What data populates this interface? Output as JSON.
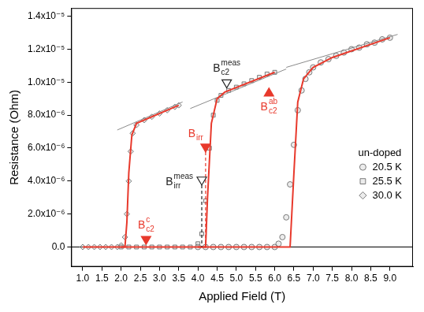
{
  "chart_data": {
    "type": "scatter",
    "x_label": "Applied Field (T)",
    "y_label": "Resistance (Ohm)",
    "xlim": [
      0.7,
      9.6
    ],
    "xticks": [
      {
        "value": 1,
        "label": "1.0"
      },
      1.5,
      {
        "value": 2,
        "label": "2.0"
      },
      2.5,
      {
        "value": 3,
        "label": "3.0"
      },
      3.5,
      {
        "value": 4,
        "label": "4.0"
      },
      4.5,
      {
        "value": 5,
        "label": "5.0"
      },
      5.5,
      {
        "value": 6,
        "label": "6.0"
      },
      6.5,
      {
        "value": 7,
        "label": "7.0"
      },
      7.5,
      {
        "value": 8,
        "label": "8.0"
      },
      8.5,
      {
        "value": 9,
        "label": "9.0"
      }
    ],
    "ylim": [
      -1.2e-06,
      1.45e-05
    ],
    "yticks": [
      {
        "value": 0,
        "label": "0.0"
      },
      {
        "value": 2e-06,
        "label": "2.0x10⁻⁶"
      },
      {
        "value": 4e-06,
        "label": "4.0x10⁻⁶"
      },
      {
        "value": 6e-06,
        "label": "6.0x10⁻⁶"
      },
      {
        "value": 8e-06,
        "label": "8.0x10⁻⁶"
      },
      {
        "value": 1e-05,
        "label": "1.0x10⁻⁵"
      },
      {
        "value": 1.2e-05,
        "label": "1.2x10⁻⁵"
      },
      {
        "value": 1.4e-05,
        "label": "1.4x10⁻⁵"
      }
    ],
    "grid": false,
    "legend": "right",
    "legend_title": "un-doped",
    "series": [
      {
        "name": "20.5 K",
        "type": "scatter",
        "color": "#7a7a7a",
        "marker": "circle",
        "x": [
          4.0,
          4.2,
          4.4,
          4.6,
          4.8,
          5.0,
          5.2,
          5.4,
          5.6,
          5.8,
          6.0,
          6.1,
          6.2,
          6.3,
          6.4,
          6.5,
          6.6,
          6.7,
          6.8,
          6.9,
          7.0,
          7.2,
          7.4,
          7.6,
          7.8,
          8.0,
          8.2,
          8.4,
          8.6,
          8.8,
          9.0
        ],
        "values": [
          0,
          0,
          0,
          0,
          0,
          0,
          0,
          0,
          0,
          0,
          0,
          2e-07,
          6e-07,
          1.8e-06,
          3.8e-06,
          6.2e-06,
          8.3e-06,
          9.5e-06,
          1.02e-05,
          1.06e-05,
          1.09e-05,
          1.12e-05,
          1.14e-05,
          1.16e-05,
          1.18e-05,
          1.2e-05,
          1.21e-05,
          1.23e-05,
          1.24e-05,
          1.26e-05,
          1.27e-05
        ]
      },
      {
        "name": "25.5 K",
        "type": "scatter",
        "color": "#7a7a7a",
        "marker": "square",
        "x": [
          2.0,
          2.2,
          2.4,
          2.6,
          2.8,
          3.0,
          3.2,
          3.4,
          3.6,
          3.8,
          4.0,
          4.1,
          4.2,
          4.3,
          4.4,
          4.5,
          4.6,
          4.8,
          5.0,
          5.2,
          5.4,
          5.6,
          5.8,
          6.0
        ],
        "values": [
          0,
          0,
          0,
          0,
          0,
          0,
          0,
          0,
          0,
          0,
          2e-07,
          8e-07,
          2.8e-06,
          6e-06,
          8e-06,
          8.9e-06,
          9.2e-06,
          9.5e-06,
          9.7e-06,
          9.9e-06,
          1.01e-05,
          1.03e-05,
          1.05e-05,
          1.06e-05
        ]
      },
      {
        "name": "30.0 K",
        "type": "scatter",
        "color": "#7a7a7a",
        "marker": "diamond",
        "x": [
          1.0,
          1.15,
          1.3,
          1.45,
          1.6,
          1.75,
          1.9,
          2.0,
          2.1,
          2.15,
          2.2,
          2.25,
          2.3,
          2.4,
          2.6,
          2.8,
          3.0,
          3.2,
          3.4,
          3.5
        ],
        "values": [
          0,
          0,
          0,
          0,
          0,
          0,
          0,
          1e-07,
          6e-07,
          2e-06,
          4e-06,
          5.8e-06,
          6.9e-06,
          7.4e-06,
          7.7e-06,
          7.9e-06,
          8.1e-06,
          8.3e-06,
          8.5e-06,
          8.6e-06
        ]
      },
      {
        "type": "line",
        "color": "#e8392c",
        "line_style": "solid",
        "x": [
          4.0,
          6.4,
          6.5,
          6.6,
          6.75,
          7.0,
          7.5,
          9.0
        ],
        "values": [
          0,
          0,
          4.5e-06,
          8.8e-06,
          1.02e-05,
          1.09e-05,
          1.15e-05,
          1.27e-05
        ]
      },
      {
        "type": "line",
        "color": "#e8392c",
        "line_style": "solid",
        "x": [
          2.0,
          4.2,
          4.25,
          4.35,
          4.5,
          4.7,
          6.0
        ],
        "values": [
          0,
          0,
          3e-06,
          7.5e-06,
          9e-06,
          9.4e-06,
          1.06e-05
        ]
      },
      {
        "type": "line",
        "color": "#e8392c",
        "line_style": "solid",
        "x": [
          1.0,
          2.1,
          2.15,
          2.2,
          2.28,
          2.4,
          3.5
        ],
        "values": [
          0,
          0,
          1.5e-06,
          4.5e-06,
          6.8e-06,
          7.5e-06,
          8.6e-06
        ]
      },
      {
        "type": "line",
        "color": "#8a8a8a",
        "line_style": "thin",
        "x": [
          6.3,
          9.2
        ],
        "values": [
          1.09e-05,
          1.29e-05
        ]
      },
      {
        "type": "line",
        "color": "#8a8a8a",
        "line_style": "thin",
        "x": [
          3.8,
          6.3
        ],
        "values": [
          8.4e-06,
          1.08e-05
        ]
      },
      {
        "type": "line",
        "color": "#8a8a8a",
        "line_style": "thin",
        "x": [
          1.9,
          3.6
        ],
        "values": [
          7.1e-06,
          8.8e-06
        ]
      }
    ],
    "annotations": [
      {
        "label": {
          "text": "B",
          "sub": "c2",
          "sup": "c"
        },
        "x": 2.65,
        "y": 4e-07,
        "color": "#e8392c",
        "marker": "filled_triangle_down"
      },
      {
        "label": {
          "text": "B",
          "sub": "irr"
        },
        "x": 4.2,
        "y": 6e-06,
        "color": "#e8392c",
        "marker": "filled_triangle_down",
        "line_style": "dashed"
      },
      {
        "label": {
          "text": "B",
          "sub": "irr",
          "sup": "meas"
        },
        "x": 4.1,
        "y": 4e-06,
        "color": "#222222",
        "marker": "open_triangle_down",
        "line_style": "dashed"
      },
      {
        "label": {
          "text": "B",
          "sub": "c2",
          "sup": "meas"
        },
        "x": 4.75,
        "y": 9.9e-06,
        "color": "#222222",
        "marker": "open_triangle_down"
      },
      {
        "label": {
          "text": "B",
          "sub": "c2",
          "sup": "ab"
        },
        "x": 5.85,
        "y": 9.4e-06,
        "color": "#e8392c",
        "marker": "filled_triangle_up"
      }
    ]
  }
}
